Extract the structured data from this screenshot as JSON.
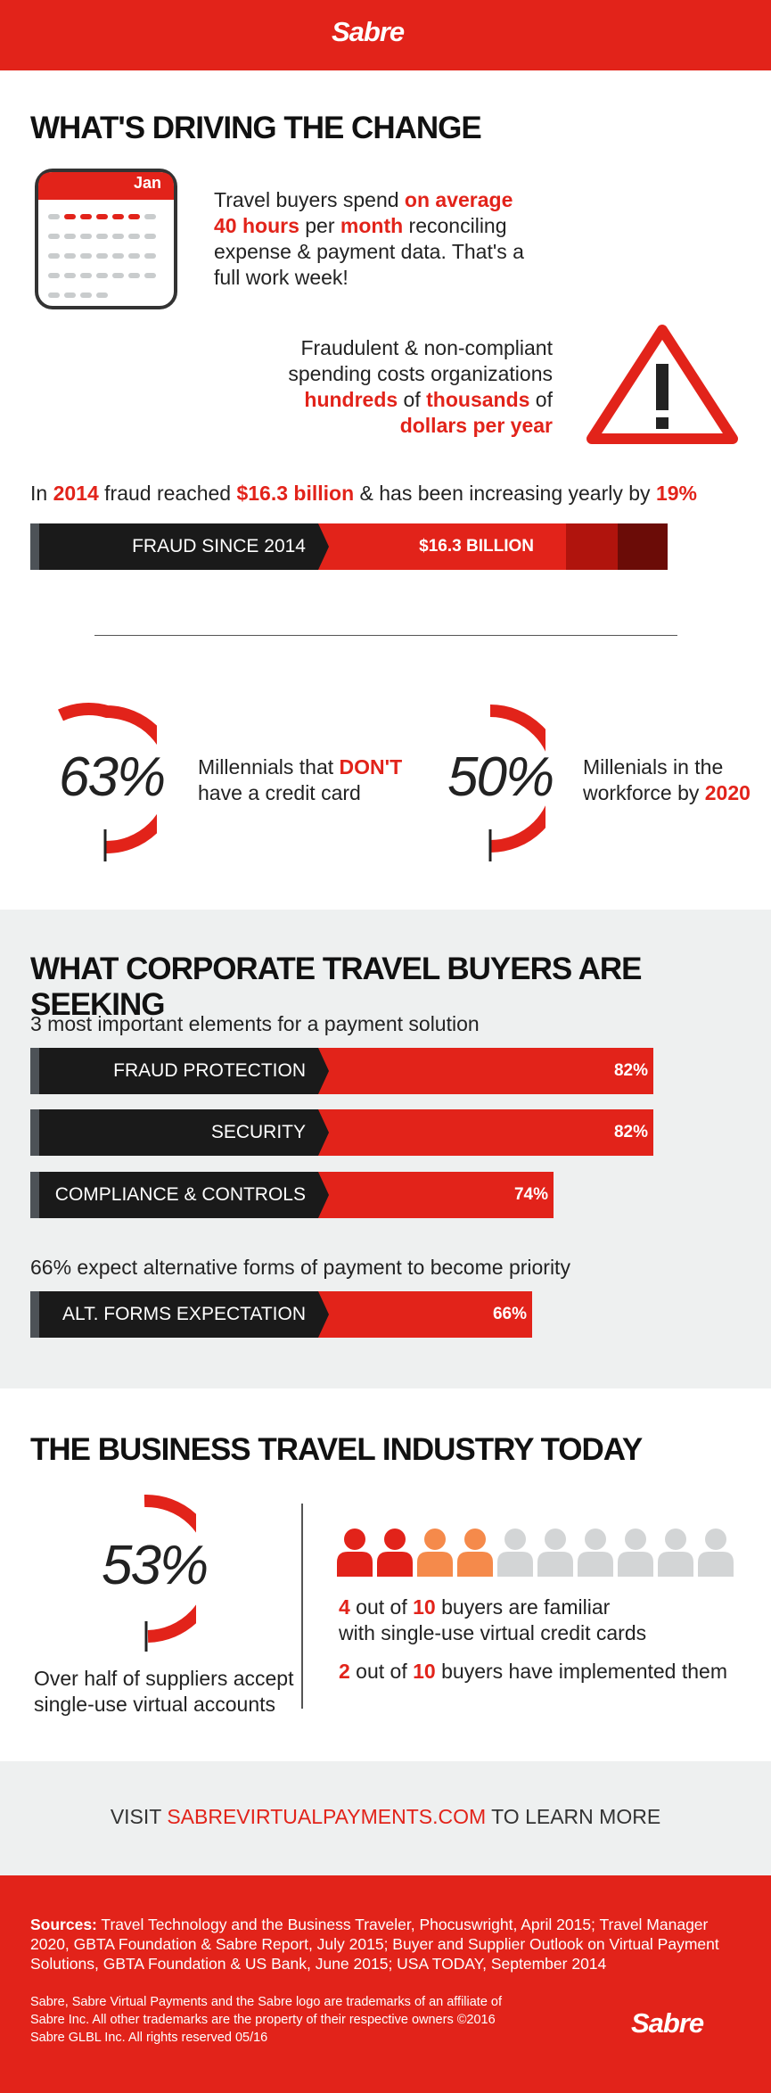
{
  "header": {
    "logo": "Sabre"
  },
  "section1": {
    "title": "WHAT'S DRIVING THE CHANGE",
    "calendar_month": "Jan",
    "fact1": {
      "p1": "Travel buyers spend ",
      "h1": "on average",
      "h2": "40 hours",
      "p2": " per ",
      "h3": "month",
      "p3": " reconciling",
      "line3": "expense & payment data. That's a",
      "line4": "full work week!"
    },
    "fact2": {
      "line1": "Fraudulent & non-compliant",
      "line2": "spending costs organizations",
      "h1": "hundreds",
      "p1": " of ",
      "h2": "thousands",
      "p2": " of",
      "h3": "dollars per year"
    },
    "fraud_line": {
      "p1": "In ",
      "h1": "2014",
      "p2": " fraud reached ",
      "h2": "$16.3 billion",
      "p3": " & has been increasing yearly by ",
      "h3": "19%"
    },
    "fraud_bar": {
      "label": "FRAUD SINCE 2014",
      "value_label": "$16.3 BILLION"
    },
    "stat1": {
      "pct": "63%",
      "line1_a": "Millennials that ",
      "line1_b": "DON'T",
      "line2": "have a credit card"
    },
    "stat2": {
      "pct": "50%",
      "line1": "Millenials in the",
      "line2_a": "workforce by ",
      "line2_b": "2020"
    }
  },
  "section2": {
    "title": "WHAT CORPORATE TRAVEL BUYERS ARE SEEKING",
    "subtitle": "3 most important elements for a payment solution",
    "bars": [
      {
        "label": "FRAUD PROTECTION",
        "value": "82%"
      },
      {
        "label": "SECURITY",
        "value": "82%"
      },
      {
        "label": "COMPLIANCE & CONTROLS",
        "value": "74%"
      }
    ],
    "subtitle2": "66% expect alternative forms of payment to become priority",
    "bar4": {
      "label": "ALT. FORMS EXPECTATION",
      "value": "66%"
    }
  },
  "section3": {
    "title": "THE BUSINESS TRAVEL INDUSTRY TODAY",
    "pct": "53%",
    "caption1": "Over half of suppliers accept",
    "caption2": "single-use virtual accounts",
    "people": {
      "familiar": 4,
      "implemented": 2,
      "total": 10
    },
    "line1": {
      "h1": "4",
      "p1": " out of ",
      "h2": "10",
      "p2": " buyers are familiar"
    },
    "line2": "with single-use virtual credit cards",
    "line3": {
      "h1": "2",
      "p1": " out of ",
      "h2": "10",
      "p2": " buyers have implemented them"
    }
  },
  "cta": {
    "p1": "VISIT ",
    "link": "SABREVIRTUALPAYMENTS.COM",
    "p2": " TO LEARN MORE"
  },
  "footer": {
    "sources_label": "Sources:",
    "sources_text": " Travel Technology and the Business Traveler, Phocuswright, April 2015; Travel Manager 2020, GBTA Foundation & Sabre Report, July 2015; Buyer and Supplier Outlook on Virtual Payment Solutions, GBTA Foundation & US Bank, June 2015; USA TODAY, September 2014",
    "legal1": "Sabre, Sabre Virtual Payments and the Sabre logo are trademarks of an affiliate of",
    "legal2": "Sabre Inc. All other trademarks are the property of their respective owners ©2016",
    "legal3": "Sabre GLBL Inc. All rights reserved 05/16",
    "logo": "Sabre"
  },
  "colors": {
    "brand_red": "#e2231a",
    "orange": "#f58a4b",
    "gray_person": "#d3d5d6",
    "bar_dark": "#1a1a1a"
  }
}
